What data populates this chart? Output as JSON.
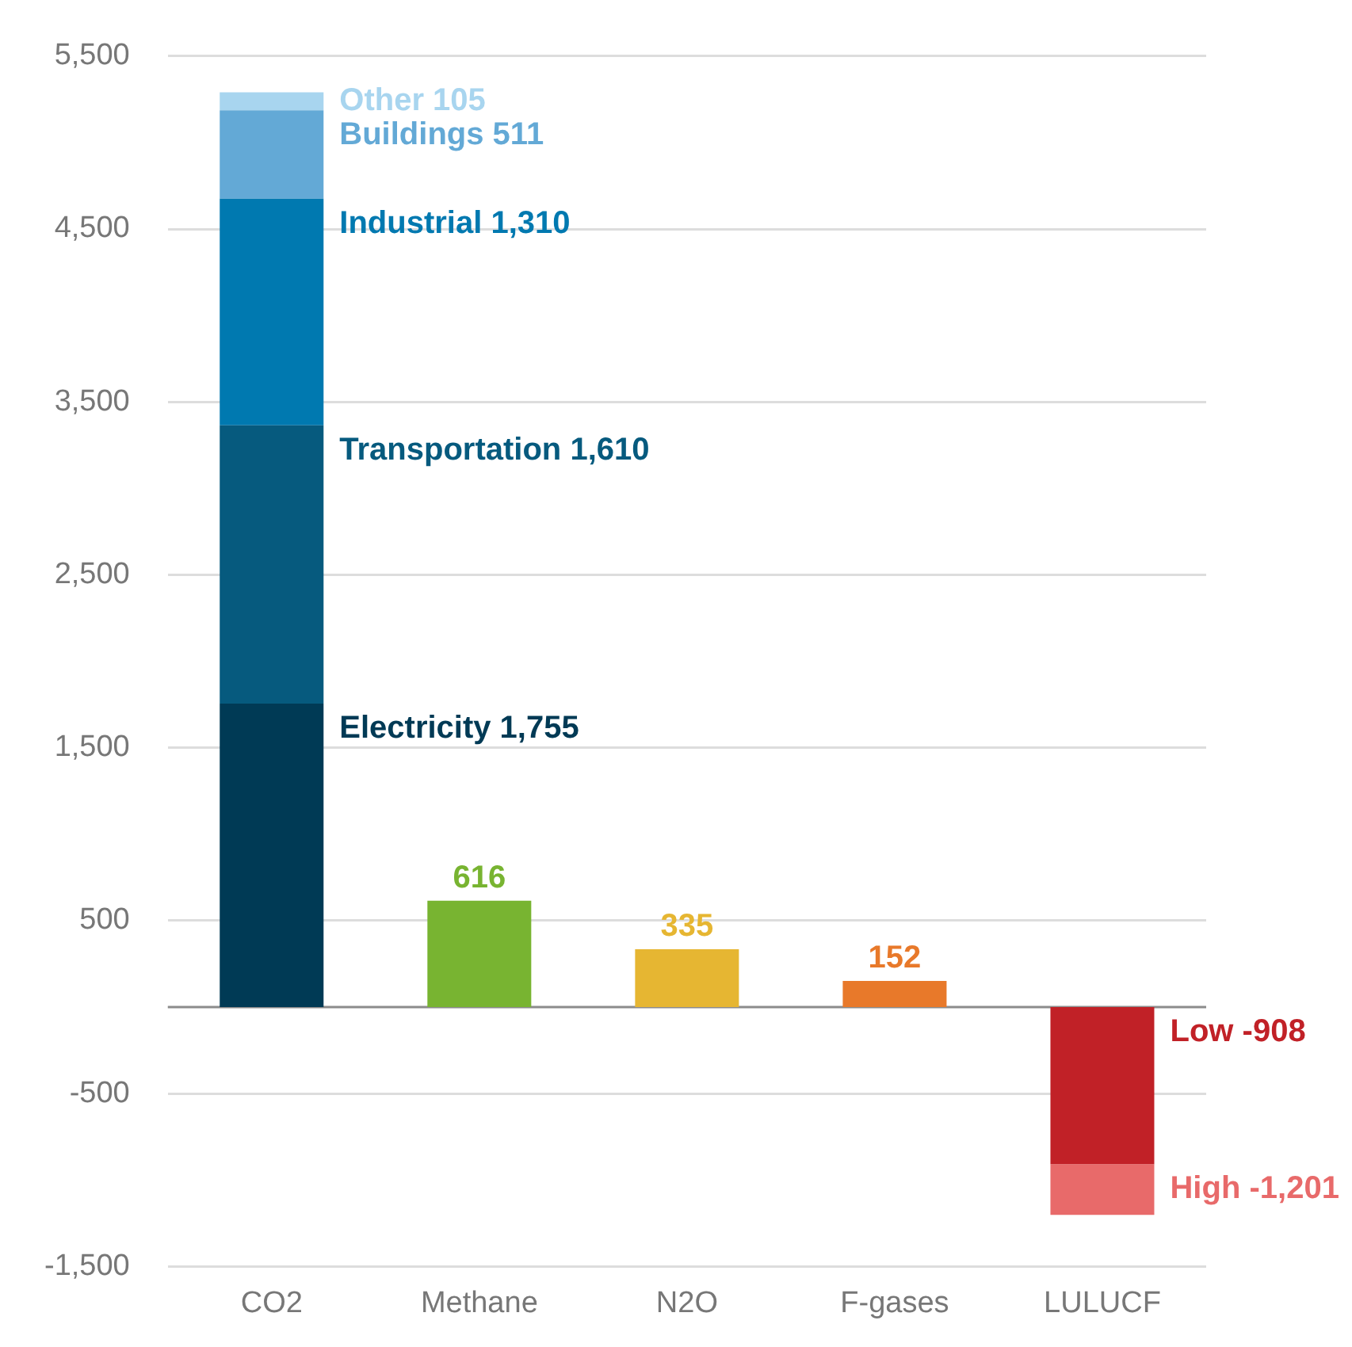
{
  "chart_data": {
    "type": "bar",
    "stacked": true,
    "categories": [
      "CO2",
      "Methane",
      "N2O",
      "F-gases",
      "LULUCF"
    ],
    "ylim": [
      -1500,
      5500
    ],
    "yticks": [
      {
        "value": -1500,
        "label": "-1,500"
      },
      -500,
      500,
      {
        "value": 1500,
        "label": "1,500"
      },
      {
        "value": 2500,
        "label": "2,500"
      },
      {
        "value": 3500,
        "label": "3,500"
      },
      {
        "value": 4500,
        "label": "4,500"
      },
      {
        "value": 5500,
        "label": "5,500"
      }
    ],
    "grid": "y",
    "ref_lines": [
      {
        "axis": "y",
        "value": 0,
        "color": "#8c8c8c"
      }
    ],
    "series": [
      {
        "name": "Electricity",
        "color": "#003a55",
        "values": [
          1755,
          null,
          null,
          null,
          null
        ],
        "value_labels": [
          "1,755",
          null,
          null,
          null,
          null
        ]
      },
      {
        "name": "Transportation",
        "color": "#065a7e",
        "values": [
          1610,
          null,
          null,
          null,
          null
        ],
        "value_labels": [
          "1,610",
          null,
          null,
          null,
          null
        ]
      },
      {
        "name": "Industrial",
        "color": "#0079b0",
        "values": [
          1310,
          null,
          null,
          null,
          null
        ],
        "value_labels": [
          "1,310",
          null,
          null,
          null,
          null
        ]
      },
      {
        "name": "Buildings",
        "color": "#63a9d6",
        "values": [
          511,
          null,
          null,
          null,
          null
        ],
        "value_labels": [
          "511",
          null,
          null,
          null,
          null
        ]
      },
      {
        "name": "Other",
        "color": "#a8d5ef",
        "values": [
          105,
          null,
          null,
          null,
          null
        ],
        "value_labels": [
          "105",
          null,
          null,
          null,
          null
        ]
      },
      {
        "color": "#78b431",
        "values": [
          null,
          616,
          null,
          null,
          null
        ],
        "value_labels": [
          null,
          "616",
          null,
          null,
          null
        ]
      },
      {
        "color": "#e6b632",
        "values": [
          null,
          null,
          335,
          null,
          null
        ],
        "value_labels": [
          null,
          null,
          "335",
          null,
          null
        ]
      },
      {
        "color": "#e8792a",
        "values": [
          null,
          null,
          null,
          152,
          null
        ],
        "value_labels": [
          null,
          null,
          null,
          "152",
          null
        ]
      },
      {
        "name": "Low",
        "color": "#c12127",
        "values": [
          null,
          null,
          null,
          null,
          -908
        ],
        "value_labels": [
          null,
          null,
          null,
          null,
          "-908"
        ]
      },
      {
        "name": "High",
        "color": "#e86a6a",
        "values": [
          null,
          null,
          null,
          null,
          -293
        ]
      }
    ],
    "annotations": [
      "-1,201"
    ]
  }
}
